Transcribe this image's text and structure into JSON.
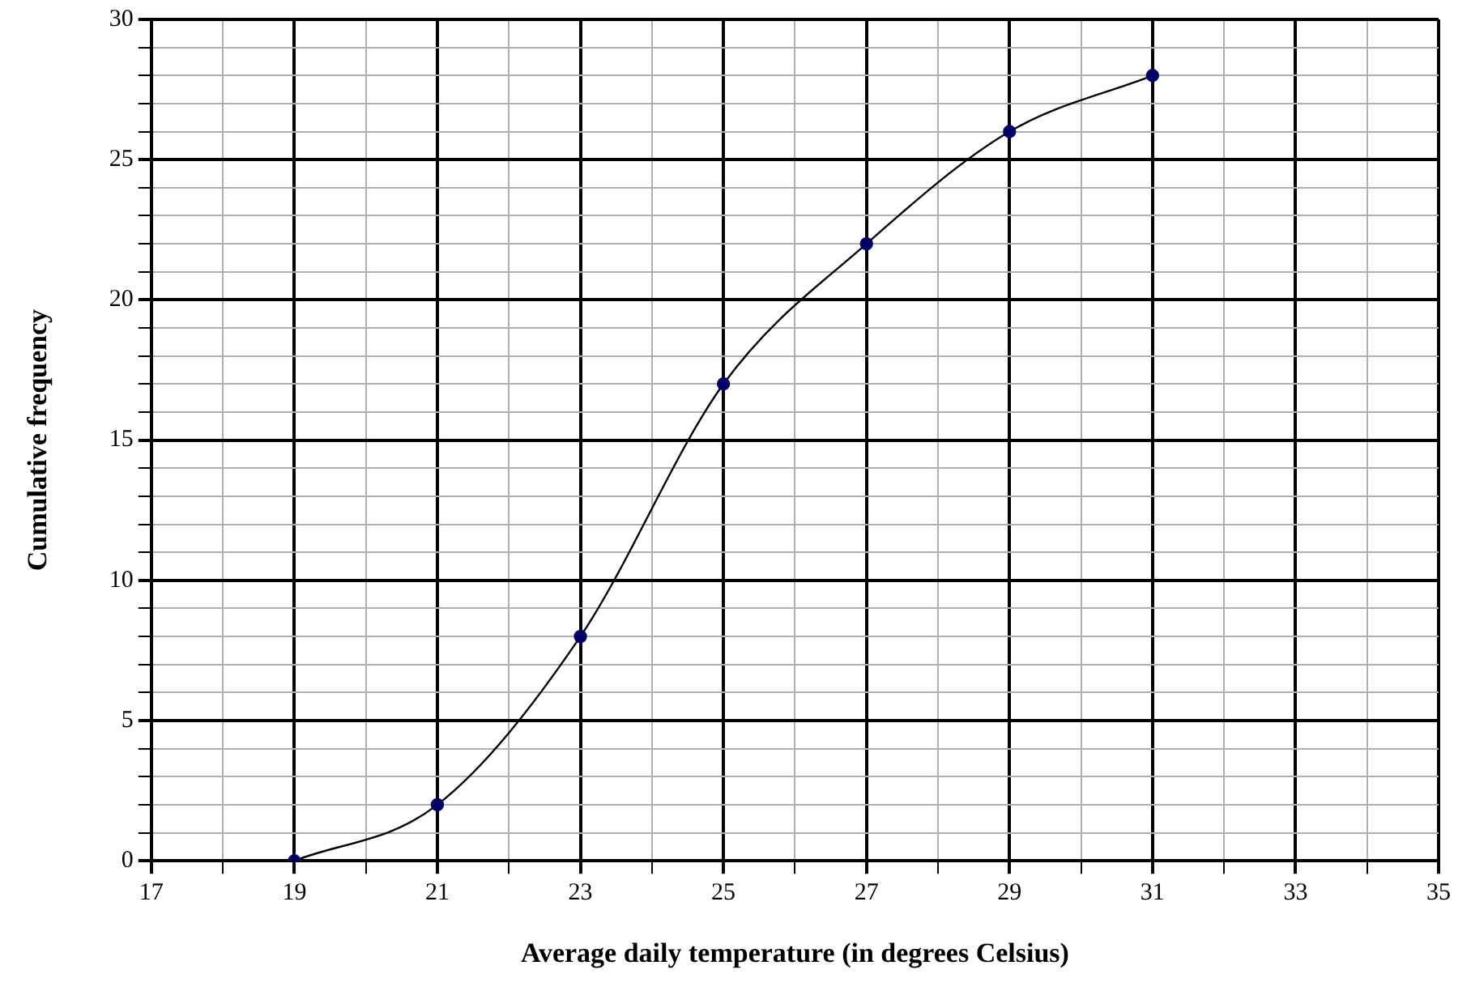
{
  "chart_data": {
    "type": "line",
    "xlabel": "Average daily temperature (in degrees Celsius)",
    "ylabel": "Cumulative frequency",
    "x": [
      19,
      21,
      23,
      25,
      27,
      29,
      31
    ],
    "series": [
      {
        "color": "#000000",
        "values": [
          0,
          2,
          8,
          17,
          22,
          26,
          28
        ]
      }
    ],
    "marker": "circle",
    "xlim": [
      17,
      35
    ],
    "xticks": [
      17,
      {
        "value": 18,
        "label": null
      },
      19,
      {
        "value": 20,
        "label": null
      },
      21,
      {
        "value": 22,
        "label": null
      },
      23,
      {
        "value": 24,
        "label": null
      },
      25,
      {
        "value": 26,
        "label": null
      },
      27,
      {
        "value": 28,
        "label": null
      },
      29,
      {
        "value": 30,
        "label": null
      },
      31,
      {
        "value": 32,
        "label": null
      },
      33,
      {
        "value": 34,
        "label": null
      },
      35
    ],
    "ylim": [
      0,
      30
    ],
    "yticks": [
      0,
      {
        "value": 1,
        "label": null
      },
      {
        "value": 2,
        "label": null
      },
      {
        "value": 3,
        "label": null
      },
      {
        "value": 4,
        "label": null
      },
      5,
      {
        "value": 6,
        "label": null
      },
      {
        "value": 7,
        "label": null
      },
      {
        "value": 8,
        "label": null
      },
      {
        "value": 9,
        "label": null
      },
      10,
      {
        "value": 11,
        "label": null
      },
      {
        "value": 12,
        "label": null
      },
      {
        "value": 13,
        "label": null
      },
      {
        "value": 14,
        "label": null
      },
      15,
      {
        "value": 16,
        "label": null
      },
      {
        "value": 17,
        "label": null
      },
      {
        "value": 18,
        "label": null
      },
      {
        "value": 19,
        "label": null
      },
      20,
      {
        "value": 21,
        "label": null
      },
      {
        "value": 22,
        "label": null
      },
      {
        "value": 23,
        "label": null
      },
      {
        "value": 24,
        "label": null
      },
      25,
      {
        "value": 26,
        "label": null
      },
      {
        "value": 27,
        "label": null
      },
      {
        "value": 28,
        "label": null
      },
      {
        "value": 29,
        "label": null
      },
      30
    ],
    "grid": true
  }
}
